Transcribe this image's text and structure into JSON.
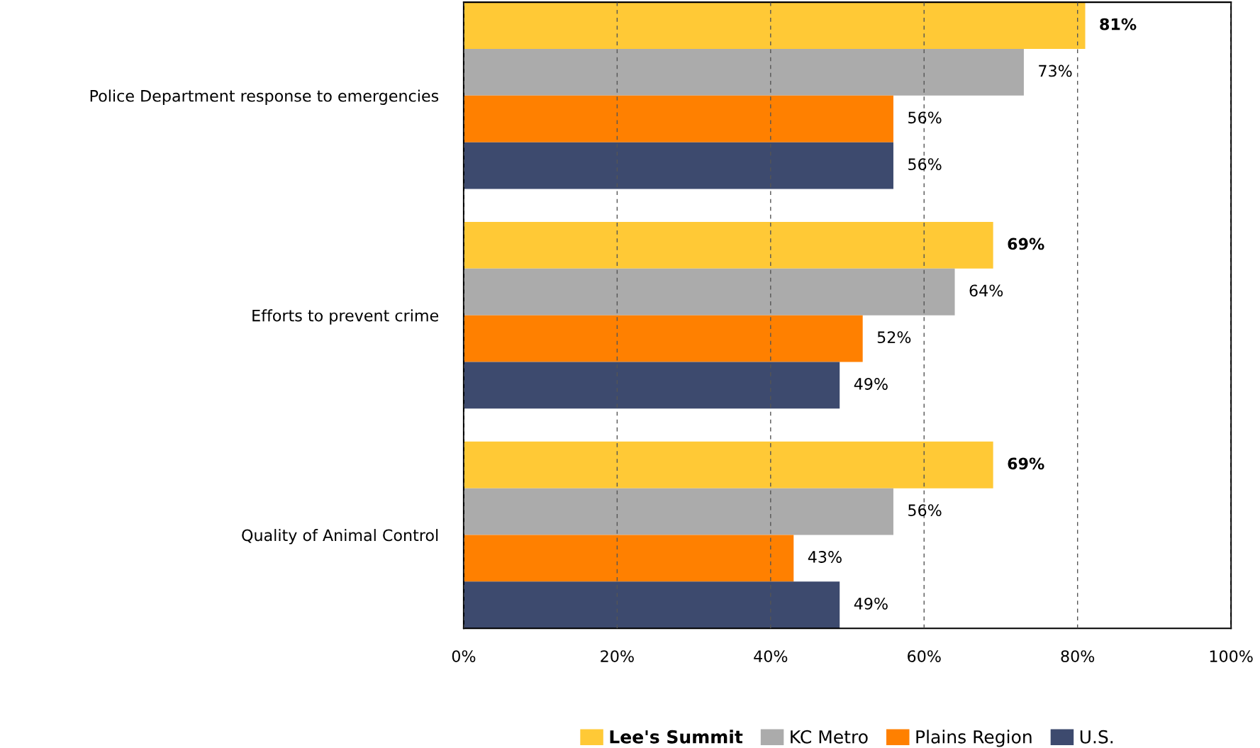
{
  "chart_data": {
    "type": "bar",
    "orientation": "horizontal",
    "categories": [
      "Police Department response to emergencies",
      "Efforts to prevent crime",
      "Quality of Animal Control"
    ],
    "series": [
      {
        "name": "Lee's Summit",
        "color": "#ffc936",
        "values": [
          81,
          69,
          69
        ],
        "value_labels": [
          "81%",
          "69%",
          "69%"
        ]
      },
      {
        "name": "KC Metro",
        "color": "#ababab",
        "values": [
          73,
          64,
          56
        ],
        "value_labels": [
          "73%",
          "64%",
          "56%"
        ]
      },
      {
        "name": "Plains Region",
        "color": "#ff8000",
        "values": [
          56,
          52,
          43
        ],
        "value_labels": [
          "56%",
          "52%",
          "43%"
        ]
      },
      {
        "name": "U.S.",
        "color": "#3d4a6e",
        "values": [
          56,
          49,
          49
        ],
        "value_labels": [
          "56%",
          "49%",
          "49%"
        ]
      }
    ],
    "xlim": [
      0,
      100
    ],
    "xticks": [
      {
        "value": 0,
        "label": "0%"
      },
      {
        "value": 20,
        "label": "20%"
      },
      {
        "value": 40,
        "label": "40%"
      },
      {
        "value": 60,
        "label": "60%"
      },
      {
        "value": 80,
        "label": "80%"
      },
      {
        "value": 100,
        "label": "100%"
      }
    ],
    "grid": "x",
    "legend": "bottom"
  }
}
